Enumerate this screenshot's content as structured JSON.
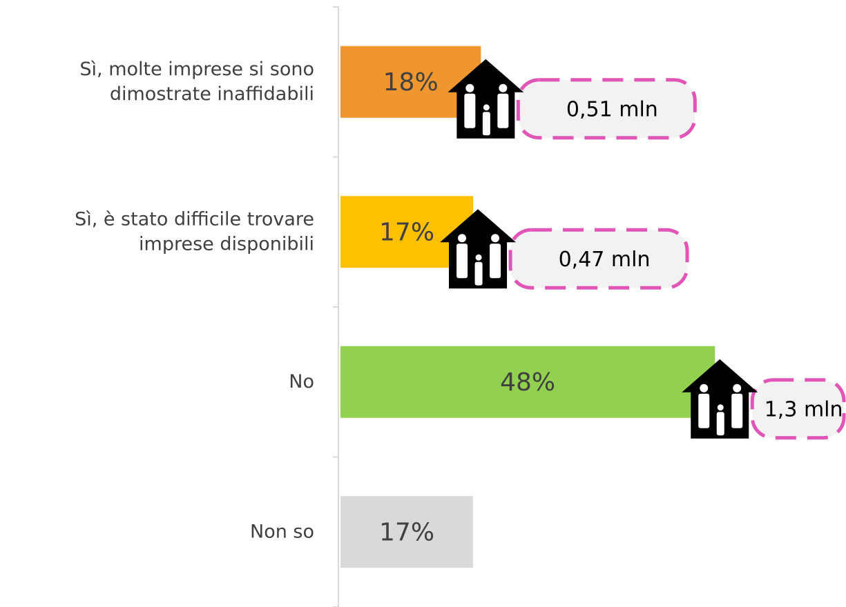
{
  "chart_data": {
    "type": "bar",
    "orientation": "horizontal",
    "categories": [
      "Sì, molte imprese si sono\ndimostrate inaffidabili",
      "Sì, è stato difficile trovare\nimprese disponibili",
      "No",
      "Non so"
    ],
    "values": [
      18,
      17,
      48,
      17
    ],
    "value_labels": [
      "18%",
      "17%",
      "48%",
      "17%"
    ],
    "colors": [
      "#f0962f",
      "#ffc000",
      "#92d050",
      "#d9d9d9"
    ],
    "xlim": [
      0,
      64
    ],
    "annotations": {
      "values": [
        0.51,
        0.47,
        1.3,
        null
      ],
      "value_labels": [
        "0,51 mln",
        "0,47 mln",
        "1,3 mln",
        null
      ],
      "border_color": "#e055b5"
    }
  }
}
